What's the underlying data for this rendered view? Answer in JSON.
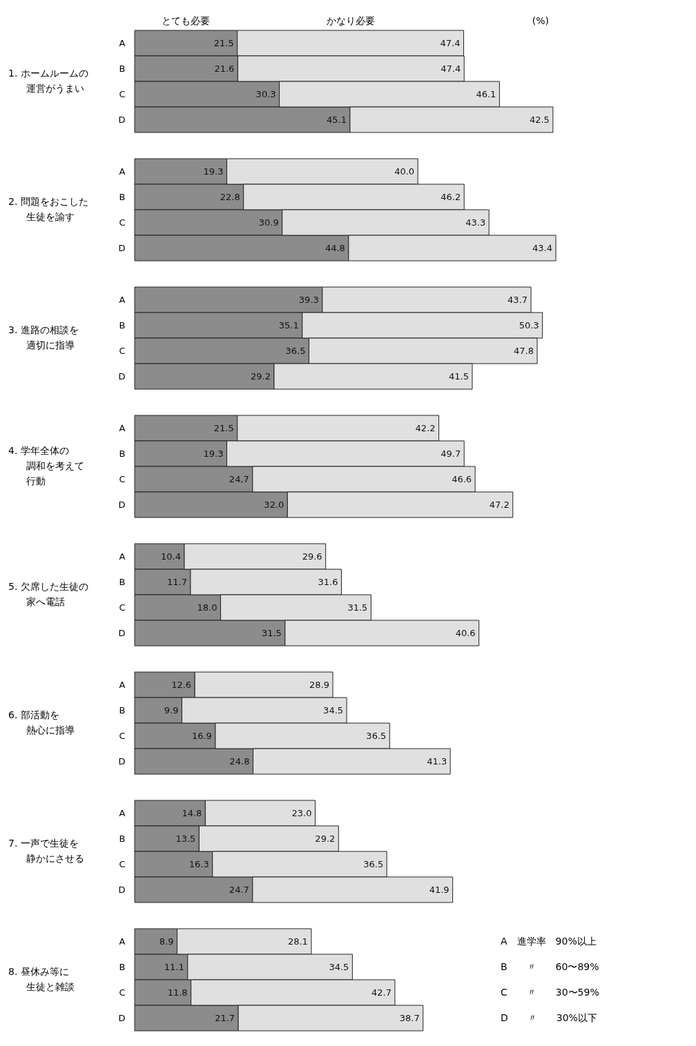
{
  "chart_data": [
    {
      "type": "bar",
      "orientation": "horizontal",
      "stacked": true,
      "title": [
        "1. ホームルームの",
        "運営がうまい"
      ],
      "categories": [
        "A",
        "B",
        "C",
        "D"
      ],
      "annotations": [
        "(%)"
      ],
      "series": [
        {
          "name": "とても必要",
          "color": "#8c8c8c",
          "values": [
            21.5,
            21.6,
            30.3,
            45.1
          ],
          "value_labels": [
            "21.5",
            "21.6",
            "30.3",
            "45.1"
          ]
        },
        {
          "name": "かなり必要",
          "color": "#e0e0e0",
          "values": [
            47.4,
            47.4,
            46.1,
            42.5
          ],
          "value_labels": [
            "47.4",
            "47.4",
            "46.1",
            "42.5"
          ]
        }
      ]
    },
    {
      "type": "bar",
      "orientation": "horizontal",
      "stacked": true,
      "title": [
        "2. 問題をおこした",
        "生徒を諭す"
      ],
      "categories": [
        "A",
        "B",
        "C",
        "D"
      ],
      "series": [
        {
          "color": "#8c8c8c",
          "values": [
            19.3,
            22.8,
            30.9,
            44.8
          ],
          "value_labels": [
            "19.3",
            "22.8",
            "30.9",
            "44.8"
          ]
        },
        {
          "color": "#e0e0e0",
          "values": [
            40.0,
            46.2,
            43.3,
            43.4
          ],
          "value_labels": [
            "40.0",
            "46.2",
            "43.3",
            "43.4"
          ]
        }
      ]
    },
    {
      "type": "bar",
      "orientation": "horizontal",
      "stacked": true,
      "title": [
        "3. 進路の相談を",
        "適切に指導"
      ],
      "categories": [
        "A",
        "B",
        "C",
        "D"
      ],
      "series": [
        {
          "color": "#8c8c8c",
          "values": [
            39.3,
            35.1,
            36.5,
            29.2
          ],
          "value_labels": [
            "39.3",
            "35.1",
            "36.5",
            "29.2"
          ]
        },
        {
          "color": "#e0e0e0",
          "values": [
            43.7,
            50.3,
            47.8,
            41.5
          ],
          "value_labels": [
            "43.7",
            "50.3",
            "47.8",
            "41.5"
          ]
        }
      ]
    },
    {
      "type": "bar",
      "orientation": "horizontal",
      "stacked": true,
      "title": [
        "4. 学年全体の",
        "調和を考えて",
        "行動"
      ],
      "categories": [
        "A",
        "B",
        "C",
        "D"
      ],
      "series": [
        {
          "color": "#8c8c8c",
          "values": [
            21.5,
            19.3,
            24.7,
            32.0
          ],
          "value_labels": [
            "21.5",
            "19.3",
            "24,7",
            "32.0"
          ]
        },
        {
          "color": "#e0e0e0",
          "values": [
            42.2,
            49.7,
            46.6,
            47.2
          ],
          "value_labels": [
            "42.2",
            "49.7",
            "46.6",
            "47.2"
          ]
        }
      ]
    },
    {
      "type": "bar",
      "orientation": "horizontal",
      "stacked": true,
      "title": [
        "5. 欠席した生徒の",
        "家へ電話"
      ],
      "categories": [
        "A",
        "B",
        "C",
        "D"
      ],
      "series": [
        {
          "color": "#8c8c8c",
          "values": [
            10.4,
            11.7,
            18.0,
            31.5
          ],
          "value_labels": [
            "10.4",
            "11.7",
            "18.0",
            "31.5"
          ]
        },
        {
          "color": "#e0e0e0",
          "values": [
            29.6,
            31.6,
            31.5,
            40.6
          ],
          "value_labels": [
            "29.6",
            "31.6",
            "31.5",
            "40.6"
          ]
        }
      ]
    },
    {
      "type": "bar",
      "orientation": "horizontal",
      "stacked": true,
      "title": [
        "6. 部活動を",
        "熱心に指導"
      ],
      "categories": [
        "A",
        "B",
        "C",
        "D"
      ],
      "series": [
        {
          "color": "#8c8c8c",
          "values": [
            12.6,
            9.9,
            16.9,
            24.8
          ],
          "value_labels": [
            "12.6",
            "9.9",
            "16.9",
            "24.8"
          ]
        },
        {
          "color": "#e0e0e0",
          "values": [
            28.9,
            34.5,
            36.5,
            41.3
          ],
          "value_labels": [
            "28.9",
            "34.5",
            "36.5",
            "41.3"
          ]
        }
      ]
    },
    {
      "type": "bar",
      "orientation": "horizontal",
      "stacked": true,
      "title": [
        "7. 一声で生徒を",
        "静かにさせる"
      ],
      "categories": [
        "A",
        "B",
        "C",
        "D"
      ],
      "series": [
        {
          "color": "#8c8c8c",
          "values": [
            14.8,
            13.5,
            16.3,
            24.7
          ],
          "value_labels": [
            "14.8",
            "13.5",
            "16.3",
            "24.7"
          ]
        },
        {
          "color": "#e0e0e0",
          "values": [
            23.0,
            29.2,
            36.5,
            41.9
          ],
          "value_labels": [
            "23.0",
            "29.2",
            "36.5",
            "41.9"
          ]
        }
      ]
    },
    {
      "type": "bar",
      "orientation": "horizontal",
      "stacked": true,
      "title": [
        "8. 昼休み等に",
        "生徒と雑談"
      ],
      "categories": [
        "A",
        "B",
        "C",
        "D"
      ],
      "annotations": [
        "A　進学率　90%以上",
        "B　　〃　　60〜89%",
        "C　　〃　　30〜59%",
        "D　　〃　　30%以下"
      ],
      "series": [
        {
          "color": "#8c8c8c",
          "values": [
            8.9,
            11.1,
            11.8,
            21.7
          ],
          "value_labels": [
            "8.9",
            "11.1",
            "11.8",
            "21.7"
          ]
        },
        {
          "color": "#e0e0e0",
          "values": [
            28.1,
            34.5,
            42.7,
            38.7
          ],
          "value_labels": [
            "28.1",
            "34.5",
            "42.7",
            "38.7"
          ]
        }
      ]
    }
  ]
}
